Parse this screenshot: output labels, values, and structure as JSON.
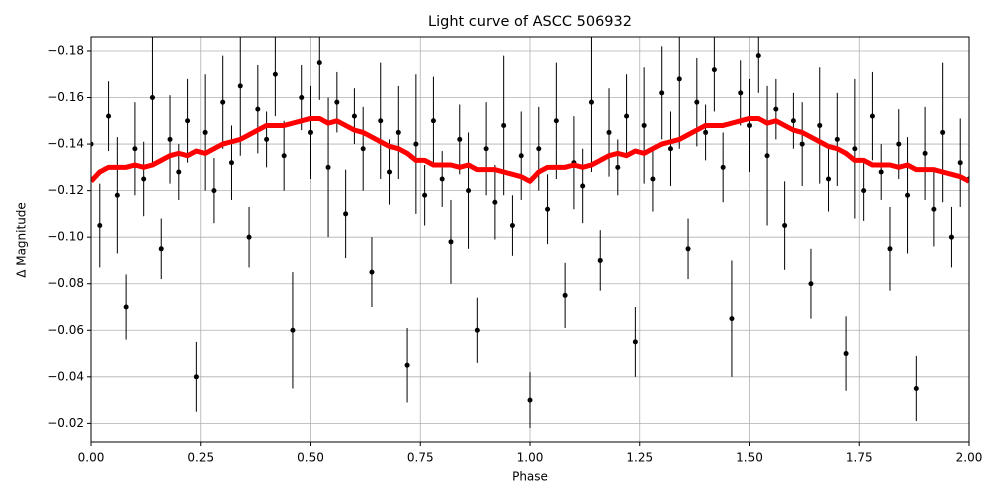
{
  "chart_data": {
    "type": "scatter",
    "title": "Light curve of ASCC 506932",
    "xlabel": "Phase",
    "ylabel": "Δ Magnitude",
    "xlim": [
      0,
      2
    ],
    "ylim": [
      -0.012,
      -0.186
    ],
    "grid": true,
    "xticks": [
      {
        "value": 0,
        "label": "0.00"
      },
      {
        "value": 0.25,
        "label": "0.25"
      },
      {
        "value": 0.5,
        "label": "0.50"
      },
      {
        "value": 0.75,
        "label": "0.75"
      },
      {
        "value": 1,
        "label": "1.00"
      },
      {
        "value": 1.25,
        "label": "1.25"
      },
      {
        "value": 1.5,
        "label": "1.50"
      },
      {
        "value": 1.75,
        "label": "1.75"
      },
      {
        "value": 2,
        "label": "2.00"
      }
    ],
    "yticks": [
      {
        "value": -0.18,
        "label": "−0.18"
      },
      {
        "value": -0.16,
        "label": "−0.16"
      },
      {
        "value": -0.14,
        "label": "−0.14"
      },
      {
        "value": -0.12,
        "label": "−0.12"
      },
      {
        "value": -0.1,
        "label": "−0.10"
      },
      {
        "value": -0.08,
        "label": "−0.08"
      },
      {
        "value": -0.06,
        "label": "−0.06"
      },
      {
        "value": -0.04,
        "label": "−0.04"
      },
      {
        "value": -0.02,
        "label": "−0.02"
      }
    ],
    "x": [
      0,
      0.02,
      0.04,
      0.06,
      0.08,
      0.1,
      0.12,
      0.14,
      0.16,
      0.18,
      0.2,
      0.22,
      0.24,
      0.26,
      0.28,
      0.3,
      0.32,
      0.34,
      0.36,
      0.38,
      0.4,
      0.42,
      0.44,
      0.46,
      0.48,
      0.5,
      0.52,
      0.54,
      0.56,
      0.58,
      0.6,
      0.62,
      0.64,
      0.66,
      0.68,
      0.7,
      0.72,
      0.74,
      0.76,
      0.78,
      0.8,
      0.82,
      0.84,
      0.86,
      0.88,
      0.9,
      0.92,
      0.94,
      0.96,
      0.98,
      1,
      1.02,
      1.04,
      1.06,
      1.08,
      1.1,
      1.12,
      1.14,
      1.16,
      1.18,
      1.2,
      1.22,
      1.24,
      1.26,
      1.28,
      1.3,
      1.32,
      1.34,
      1.36,
      1.38,
      1.4,
      1.42,
      1.44,
      1.46,
      1.48,
      1.5,
      1.52,
      1.54,
      1.56,
      1.58,
      1.6,
      1.62,
      1.64,
      1.66,
      1.68,
      1.7,
      1.72,
      1.74,
      1.76,
      1.78,
      1.8,
      1.82,
      1.84,
      1.86,
      1.88,
      1.9,
      1.92,
      1.94,
      1.96,
      1.98,
      2
    ],
    "series": [
      {
        "color": "#000000",
        "values": [
          -0.14,
          -0.105,
          -0.152,
          -0.118,
          -0.07,
          -0.138,
          -0.125,
          -0.16,
          -0.095,
          -0.142,
          -0.128,
          -0.15,
          -0.04,
          -0.145,
          -0.12,
          -0.158,
          -0.132,
          -0.165,
          -0.1,
          -0.155,
          -0.142,
          -0.17,
          -0.135,
          -0.06,
          -0.16,
          -0.145,
          -0.175,
          -0.13,
          -0.158,
          -0.11,
          -0.152,
          -0.138,
          -0.085,
          -0.15,
          -0.128,
          -0.145,
          -0.045,
          -0.14,
          -0.118,
          -0.15,
          -0.125,
          -0.098,
          -0.142,
          -0.12,
          -0.06,
          -0.138,
          -0.115,
          -0.148,
          -0.105,
          -0.135,
          -0.03,
          -0.138,
          -0.112,
          -0.15,
          -0.075,
          -0.132,
          -0.122,
          -0.158,
          -0.09,
          -0.145,
          -0.13,
          -0.152,
          -0.055,
          -0.148,
          -0.125,
          -0.162,
          -0.138,
          -0.168,
          -0.095,
          -0.158,
          -0.145,
          -0.172,
          -0.13,
          -0.065,
          -0.162,
          -0.148,
          -0.178,
          -0.135,
          -0.155,
          -0.105,
          -0.15,
          -0.14,
          -0.08,
          -0.148,
          -0.125,
          -0.142,
          -0.05,
          -0.138,
          -0.12,
          -0.152,
          -0.128,
          -0.095,
          -0.14,
          -0.118,
          -0.035,
          -0.136,
          -0.112,
          -0.145,
          -0.1,
          -0.132,
          -0.125
        ],
        "errors": [
          0.012,
          0.018,
          0.015,
          0.025,
          0.014,
          0.02,
          0.016,
          0.03,
          0.013,
          0.019,
          0.012,
          0.018,
          0.015,
          0.025,
          0.014,
          0.02,
          0.016,
          0.03,
          0.013,
          0.019,
          0.012,
          0.018,
          0.015,
          0.025,
          0.014,
          0.02,
          0.016,
          0.03,
          0.013,
          0.019,
          0.012,
          0.018,
          0.015,
          0.025,
          0.014,
          0.02,
          0.016,
          0.03,
          0.013,
          0.019,
          0.012,
          0.018,
          0.015,
          0.025,
          0.014,
          0.02,
          0.016,
          0.03,
          0.013,
          0.019,
          0.012,
          0.018,
          0.015,
          0.025,
          0.014,
          0.02,
          0.016,
          0.03,
          0.013,
          0.019,
          0.012,
          0.018,
          0.015,
          0.025,
          0.014,
          0.02,
          0.016,
          0.03,
          0.013,
          0.019,
          0.012,
          0.018,
          0.015,
          0.025,
          0.014,
          0.02,
          0.016,
          0.03,
          0.013,
          0.019,
          0.012,
          0.018,
          0.015,
          0.025,
          0.014,
          0.02,
          0.016,
          0.03,
          0.013,
          0.019,
          0.012,
          0.018,
          0.015,
          0.025,
          0.014,
          0.02,
          0.016,
          0.03,
          0.013,
          0.019,
          0.012
        ]
      },
      {
        "color": "#ff0000",
        "values": [
          -0.124,
          -0.128,
          -0.13,
          -0.13,
          -0.13,
          -0.131,
          -0.13,
          -0.131,
          -0.133,
          -0.135,
          -0.136,
          -0.135,
          -0.137,
          -0.136,
          -0.138,
          -0.14,
          -0.141,
          -0.142,
          -0.144,
          -0.146,
          -0.148,
          -0.148,
          -0.148,
          -0.149,
          -0.15,
          -0.151,
          -0.151,
          -0.149,
          -0.15,
          -0.148,
          -0.146,
          -0.145,
          -0.143,
          -0.141,
          -0.139,
          -0.138,
          -0.136,
          -0.133,
          -0.133,
          -0.131,
          -0.131,
          -0.131,
          -0.13,
          -0.131,
          -0.129,
          -0.129,
          -0.129,
          -0.128,
          -0.127,
          -0.126,
          -0.124,
          -0.128,
          -0.13,
          -0.13,
          -0.13,
          -0.131,
          -0.13,
          -0.131,
          -0.133,
          -0.135,
          -0.136,
          -0.135,
          -0.137,
          -0.136,
          -0.138,
          -0.14,
          -0.141,
          -0.142,
          -0.144,
          -0.146,
          -0.148,
          -0.148,
          -0.148,
          -0.149,
          -0.15,
          -0.151,
          -0.151,
          -0.149,
          -0.15,
          -0.148,
          -0.146,
          -0.145,
          -0.143,
          -0.141,
          -0.139,
          -0.138,
          -0.136,
          -0.133,
          -0.133,
          -0.131,
          -0.131,
          -0.131,
          -0.13,
          -0.131,
          -0.129,
          -0.129,
          -0.129,
          -0.128,
          -0.127,
          -0.126,
          -0.124
        ]
      }
    ]
  }
}
